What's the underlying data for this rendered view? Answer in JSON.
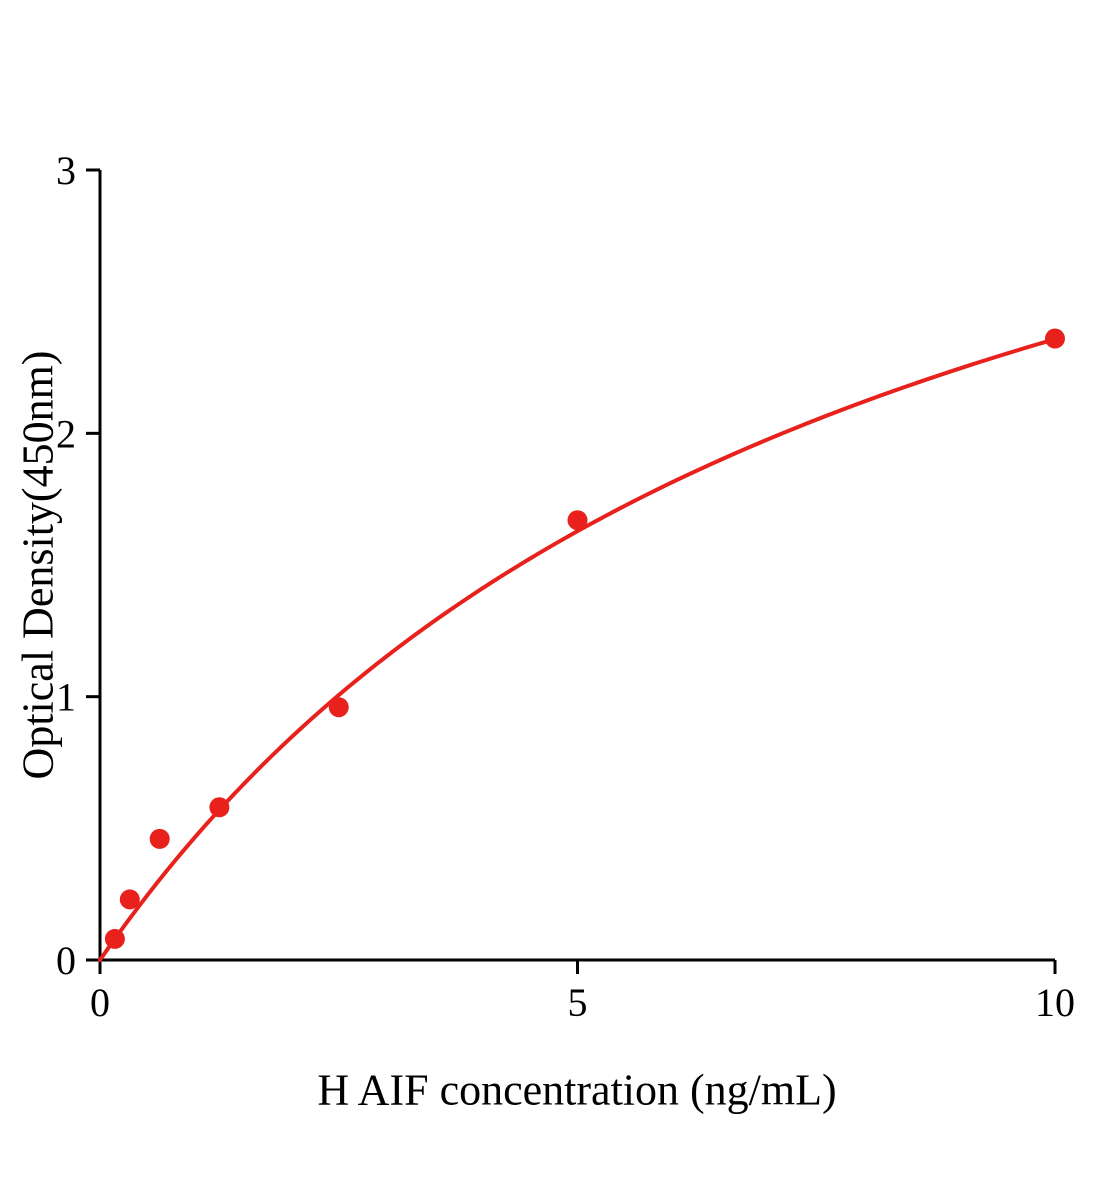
{
  "page": {
    "background": "#ffffff"
  },
  "chart_data": {
    "type": "scatter",
    "title": "",
    "xlabel": "H AIF concentration (ng/mL)",
    "ylabel": "Optical Density(450nm)",
    "xlim": [
      0,
      10
    ],
    "ylim": [
      0,
      3
    ],
    "xticks": [
      0,
      5,
      10
    ],
    "yticks": [
      0,
      1,
      2,
      3
    ],
    "grid": false,
    "legend": false,
    "axis_color": "#000000",
    "point_color": "#e8211d",
    "curve_color": "#e8211d",
    "points": {
      "x": [
        0.156,
        0.312,
        0.625,
        1.25,
        2.5,
        5,
        10
      ],
      "y": [
        0.08,
        0.23,
        0.46,
        0.58,
        0.96,
        1.67,
        2.36
      ]
    },
    "fit_curve": {
      "model": "michaelis-menten",
      "vmax": 4.27,
      "km": 8.11,
      "x_start": 0,
      "x_end": 10
    }
  }
}
